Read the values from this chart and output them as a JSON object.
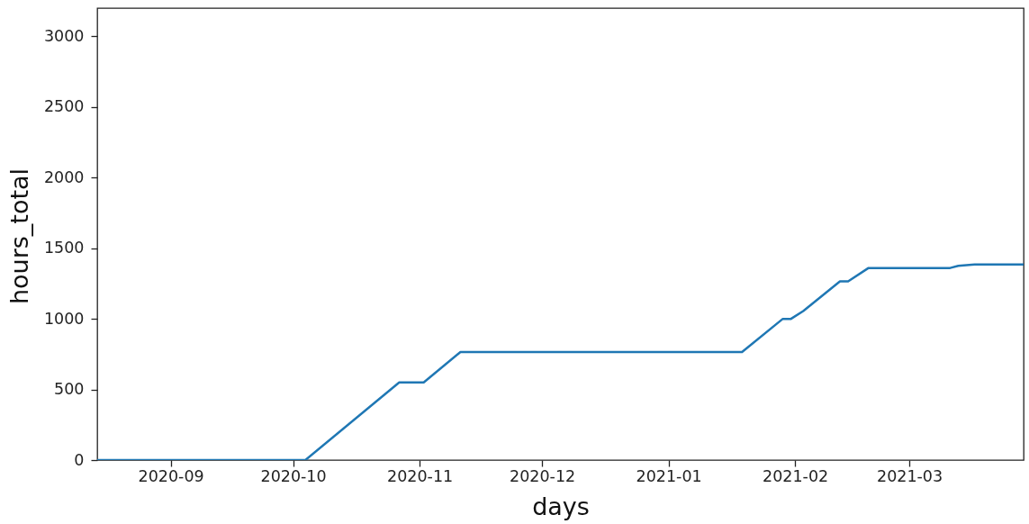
{
  "chart_data": {
    "type": "line",
    "xlabel": "days",
    "ylabel": "hours_total",
    "x": [
      "2020-08-14",
      "2020-10-04",
      "2020-10-27",
      "2020-11-02",
      "2020-11-11",
      "2021-01-19",
      "2021-01-29",
      "2021-01-31",
      "2021-02-03",
      "2021-02-12",
      "2021-02-14",
      "2021-02-19",
      "2021-03-11",
      "2021-03-13",
      "2021-03-17",
      "2021-03-29"
    ],
    "series": [
      {
        "color": "#1f77b4",
        "values": [
          0,
          0,
          550,
          550,
          765,
          765,
          1000,
          1000,
          1055,
          1265,
          1265,
          1360,
          1360,
          1375,
          1385,
          1385
        ]
      }
    ],
    "xlim": [
      "2020-08-14",
      "2021-03-29"
    ],
    "xticks": [
      "2020-09",
      "2020-10",
      "2020-11",
      "2020-12",
      "2021-01",
      "2021-02",
      "2021-03"
    ],
    "ylim": [
      0,
      3200
    ],
    "yticks": [
      0,
      500,
      1000,
      1500,
      2000,
      2500,
      3000
    ],
    "line_style": "solid"
  }
}
